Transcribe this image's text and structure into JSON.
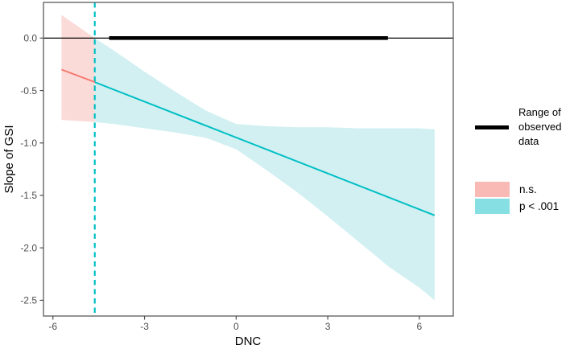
{
  "chart_data": {
    "type": "area",
    "title": "",
    "xlabel": "DNC",
    "ylabel": "Slope of GSI",
    "xlim": [
      -6.31,
      7.11
    ],
    "ylim": [
      -2.65,
      0.34
    ],
    "grid": false,
    "x_ticks": {
      "values": [
        -6,
        -3,
        0,
        3,
        6
      ],
      "labels": [
        "-6",
        "-3",
        "0",
        "3",
        "6"
      ]
    },
    "y_ticks": {
      "values": [
        0,
        -0.5,
        -1,
        -1.5,
        -2,
        -2.5
      ],
      "labels": [
        "0.0",
        "-0.5",
        "-1.0",
        "-1.5",
        "-2.0",
        "-2.5"
      ]
    },
    "jn_point": -4.63,
    "zero_line_y": 0,
    "observed_range": {
      "y": 0,
      "x_start": -4.16,
      "x_end": 4.97
    },
    "series": [
      {
        "name": "n.s. slope segment",
        "type": "line",
        "x": [
          -5.72,
          -4.63
        ],
        "y": [
          -0.3,
          -0.42
        ]
      },
      {
        "name": "p < .001 slope segment",
        "type": "line",
        "x": [
          -4.63,
          6.5
        ],
        "y": [
          -0.42,
          -1.69
        ]
      }
    ],
    "ns_ribbon": {
      "x": [
        -5.72,
        -4.63
      ],
      "upper": [
        0.22,
        0.0
      ],
      "lower": [
        -0.78,
        -0.8
      ]
    },
    "sig_ribbon": {
      "x": [
        -4.63,
        -4,
        -3,
        -2,
        -1,
        0,
        1,
        2,
        3,
        4,
        5,
        6,
        6.5
      ],
      "upper": [
        0.0,
        -0.12,
        -0.32,
        -0.51,
        -0.69,
        -0.82,
        -0.84,
        -0.85,
        -0.85,
        -0.86,
        -0.86,
        -0.86,
        -0.87
      ],
      "lower": [
        -0.8,
        -0.82,
        -0.86,
        -0.9,
        -0.95,
        -1.06,
        -1.26,
        -1.47,
        -1.7,
        -1.94,
        -2.18,
        -2.38,
        -2.5
      ]
    }
  },
  "colors": {
    "line_ns": "#F8766D",
    "line_sig": "#00BFC4",
    "ribbon_ns": "#FBDBD8",
    "ribbon_sig": "#D2F0F2",
    "legend_ns": "#F9B9B5",
    "legend_sig": "#86DFE2",
    "observed_line": "#000000",
    "zero_line": "#000000",
    "panel_border": "#666666",
    "tick": "#4d4d4d",
    "tick_text": "#4d4d4d",
    "axis_title_text": "#000000"
  },
  "legend": {
    "observed_label": "Range of observed data",
    "items": [
      {
        "label": "n.s.",
        "color_key": "legend_ns"
      },
      {
        "label": "p < .001",
        "color_key": "legend_sig"
      }
    ]
  }
}
